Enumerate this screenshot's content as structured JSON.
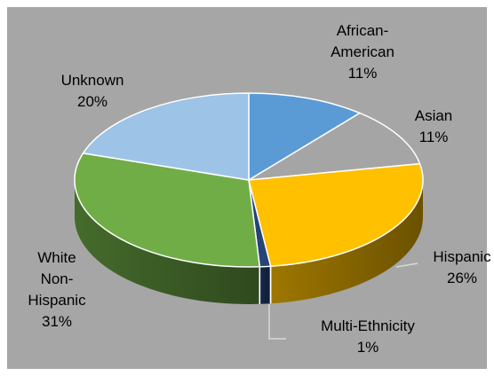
{
  "chart_data": {
    "type": "pie",
    "style": "3d",
    "background": "#a6a6a6",
    "border": "#ffffff",
    "slices": [
      {
        "label_lines": [
          "African-",
          "American"
        ],
        "percent_label": "11%",
        "value": 11,
        "color": "#5b9bd5"
      },
      {
        "label_lines": [
          "Asian"
        ],
        "percent_label": "11%",
        "value": 11,
        "color": "#a5a5a5"
      },
      {
        "label_lines": [
          "Hispanic"
        ],
        "percent_label": "26%",
        "value": 26,
        "color": "#ffc000"
      },
      {
        "label_lines": [
          "Multi-Ethnicity"
        ],
        "percent_label": "1%",
        "value": 1,
        "color": "#264478"
      },
      {
        "label_lines": [
          "White",
          "Non-",
          "Hispanic"
        ],
        "percent_label": "31%",
        "value": 31,
        "color": "#70ad47"
      },
      {
        "label_lines": [
          "Unknown"
        ],
        "percent_label": "20%",
        "value": 20,
        "color": "#9dc3e6"
      }
    ]
  }
}
